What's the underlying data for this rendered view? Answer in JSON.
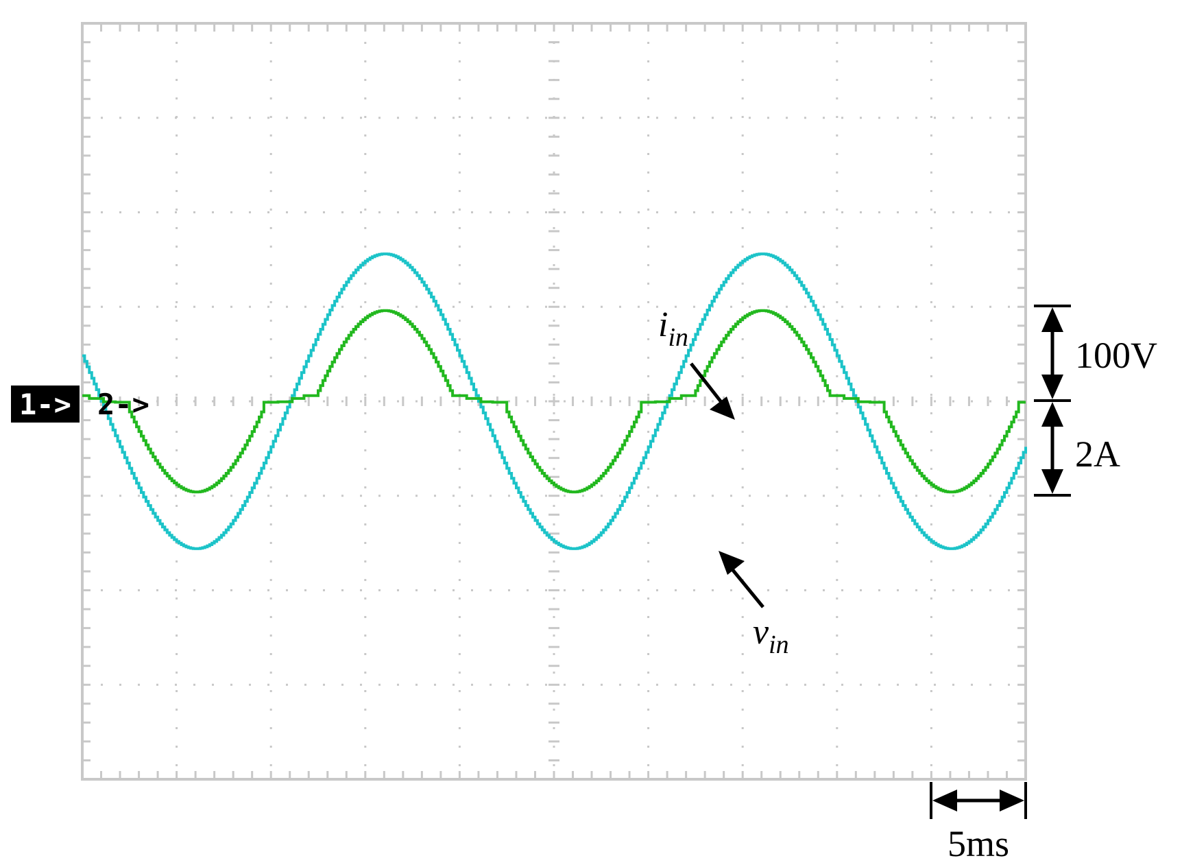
{
  "chart_data": {
    "type": "line",
    "title": "",
    "xlabel": "",
    "ylabel": "",
    "grid": true,
    "time_div_label": "5ms",
    "x_divisions": 10,
    "y_divisions": 8,
    "xlim_ms": [
      0,
      50
    ],
    "series": [
      {
        "name": "v_in",
        "label_main": "v",
        "label_sub": "in",
        "channel_marker": "1->",
        "color": "#1cc3c8",
        "scale_label": "100V",
        "unit": "V",
        "volts_per_div": 100,
        "amplitude": 156,
        "frequency_hz": 50,
        "phase_deg": 162,
        "offset_div": 0
      },
      {
        "name": "i_in",
        "label_main": "i",
        "label_sub": "in",
        "channel_marker": "2->",
        "color": "#22b81f",
        "scale_label": "2A",
        "unit": "A",
        "amps_per_div": 2,
        "amplitude": 1.8,
        "frequency_hz": 50,
        "phase_deg": 162,
        "dead_zone_fraction": 0.42,
        "offset_div": 0
      }
    ]
  },
  "colors": {
    "grid": "#c8c8c8",
    "frame": "#c8c8c8",
    "marker_bg": "#000000",
    "annotation": "#000000"
  }
}
